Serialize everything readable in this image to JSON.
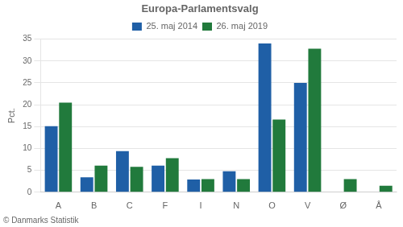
{
  "chart_data": {
    "type": "bar",
    "title": "Europa-Parlamentsvalg",
    "categories": [
      "A",
      "B",
      "C",
      "F",
      "I",
      "N",
      "O",
      "V",
      "Ø",
      "Å"
    ],
    "series": [
      {
        "name": "25. maj 2014",
        "color": "#1F5FA6",
        "values": [
          15.1,
          3.4,
          9.4,
          6.1,
          2.9,
          4.8,
          34.0,
          25.0,
          0.0,
          0.0
        ]
      },
      {
        "name": "26. maj 2019",
        "color": "#217A3C",
        "values": [
          20.5,
          6.1,
          5.8,
          7.8,
          3.0,
          3.0,
          16.6,
          32.8,
          3.0,
          1.5
        ]
      }
    ],
    "ylabel": "Pct.",
    "ylim": [
      0,
      35
    ],
    "yticks": [
      0,
      5,
      10,
      15,
      20,
      25,
      30,
      35
    ],
    "grid": true,
    "legend": "top",
    "footer": "© Danmarks Statistik"
  }
}
